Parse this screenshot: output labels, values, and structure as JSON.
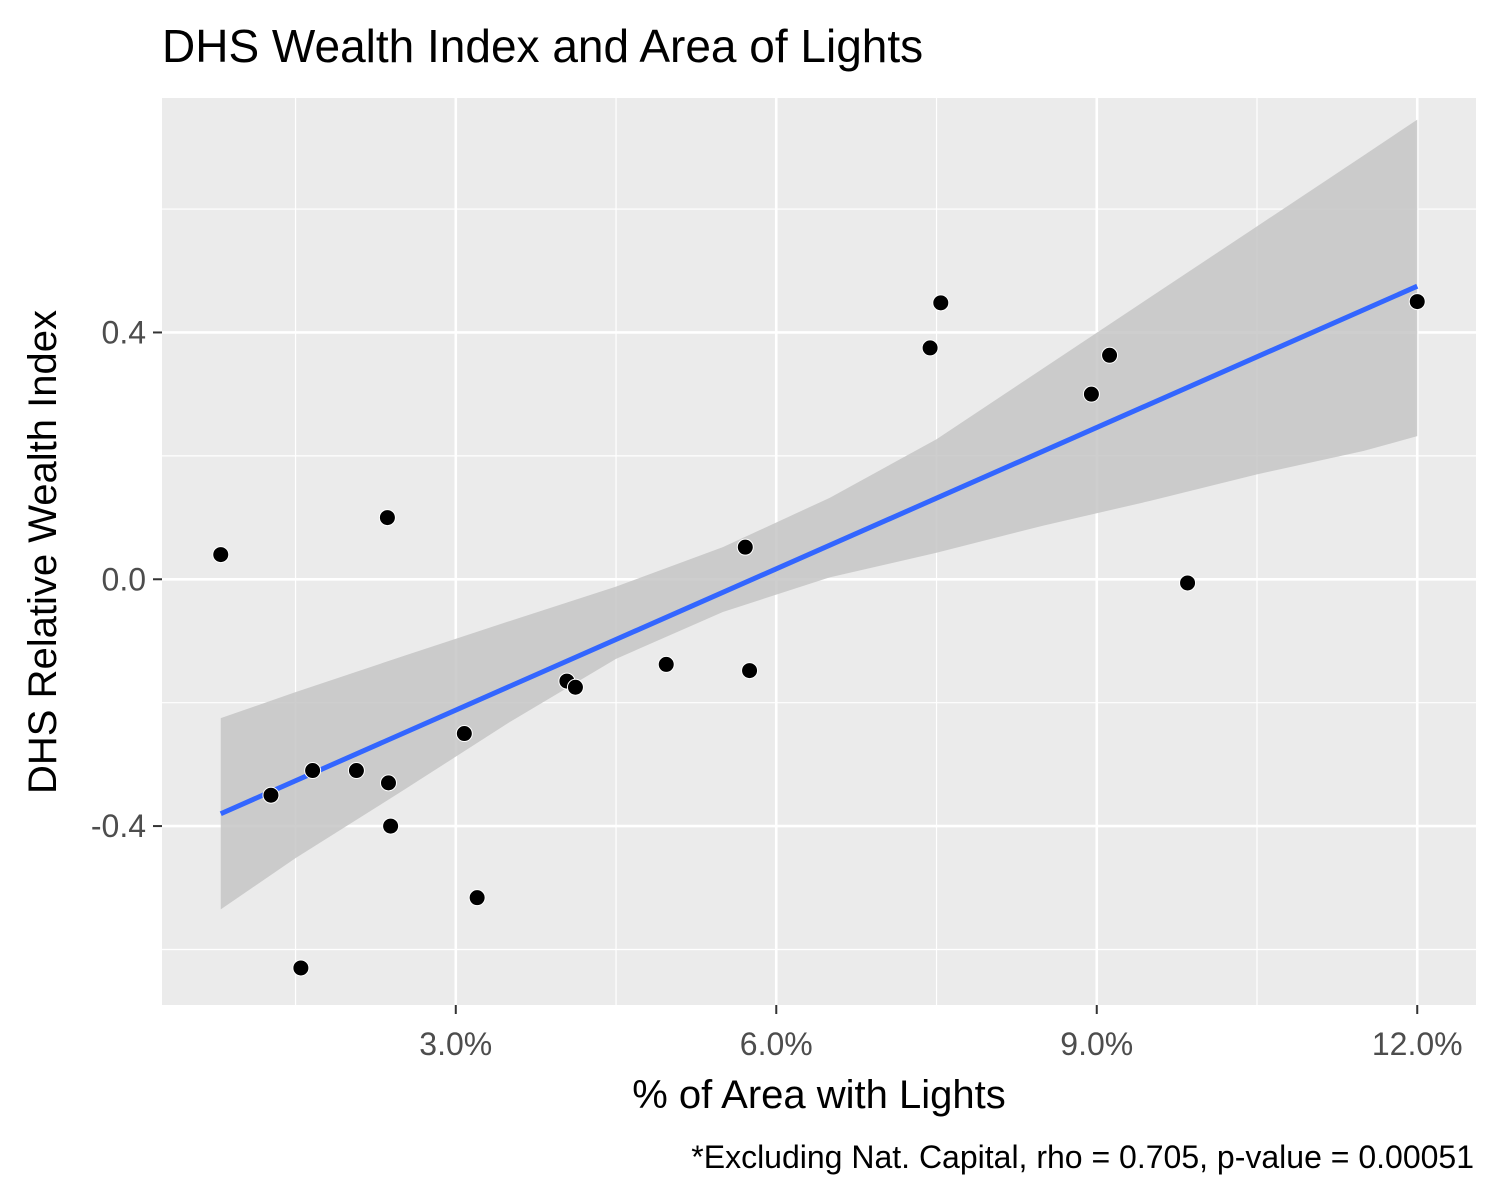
{
  "chart_data": {
    "type": "scatter",
    "title": "DHS Wealth Index and Area of Lights",
    "xlabel": "% of Area with Lights",
    "ylabel": "DHS Relative Wealth Index",
    "caption": "*Excluding Nat. Capital, rho = 0.705, p-value = 0.00051",
    "x_unit": "percent",
    "xlim": [
      0.25,
      12.55
    ],
    "ylim": [
      -0.69,
      0.78
    ],
    "x_ticks": [
      3.0,
      6.0,
      9.0,
      12.0
    ],
    "x_tick_labels": [
      "3.0%",
      "6.0%",
      "9.0%",
      "12.0%"
    ],
    "x_minor_ticks": [
      1.5,
      4.5,
      7.5,
      10.5
    ],
    "y_ticks": [
      -0.4,
      0.0,
      0.4
    ],
    "y_tick_labels": [
      "-0.4",
      "0.0",
      "0.4"
    ],
    "y_minor_ticks": [
      -0.6,
      -0.2,
      0.2,
      0.6
    ],
    "grid": true,
    "colors": {
      "panel": "#ebebeb",
      "grid": "#ffffff",
      "points": "#000000",
      "trend_line": "#3366ff",
      "confidence_band": "#c6c6c6"
    },
    "points": [
      {
        "x": 0.8,
        "y": 0.04
      },
      {
        "x": 1.27,
        "y": -0.35
      },
      {
        "x": 1.55,
        "y": -0.63
      },
      {
        "x": 1.66,
        "y": -0.31
      },
      {
        "x": 2.07,
        "y": -0.31
      },
      {
        "x": 2.36,
        "y": 0.1
      },
      {
        "x": 2.37,
        "y": -0.33
      },
      {
        "x": 2.39,
        "y": -0.4
      },
      {
        "x": 3.08,
        "y": -0.25
      },
      {
        "x": 3.2,
        "y": -0.516
      },
      {
        "x": 4.04,
        "y": -0.165
      },
      {
        "x": 4.12,
        "y": -0.175
      },
      {
        "x": 4.97,
        "y": -0.138
      },
      {
        "x": 5.71,
        "y": 0.052
      },
      {
        "x": 5.75,
        "y": -0.148
      },
      {
        "x": 7.44,
        "y": 0.375
      },
      {
        "x": 7.54,
        "y": 0.448
      },
      {
        "x": 8.95,
        "y": 0.3
      },
      {
        "x": 9.12,
        "y": 0.363
      },
      {
        "x": 9.85,
        "y": -0.006
      },
      {
        "x": 12.0,
        "y": 0.45
      }
    ],
    "trend": {
      "method": "linear fit",
      "x": [
        0.8,
        12.0
      ],
      "y": [
        -0.38,
        0.475
      ]
    },
    "confidence_band": {
      "x": [
        0.8,
        1.5,
        2.5,
        3.5,
        4.5,
        5.5,
        6.5,
        7.5,
        8.5,
        9.5,
        10.5,
        11.5,
        12.0
      ],
      "upper": [
        -0.225,
        -0.183,
        -0.125,
        -0.068,
        -0.012,
        0.052,
        0.132,
        0.227,
        0.342,
        0.457,
        0.572,
        0.687,
        0.745
      ],
      "lower": [
        -0.535,
        -0.452,
        -0.343,
        -0.232,
        -0.129,
        -0.053,
        0.003,
        0.043,
        0.087,
        0.127,
        0.17,
        0.208,
        0.232
      ]
    }
  }
}
